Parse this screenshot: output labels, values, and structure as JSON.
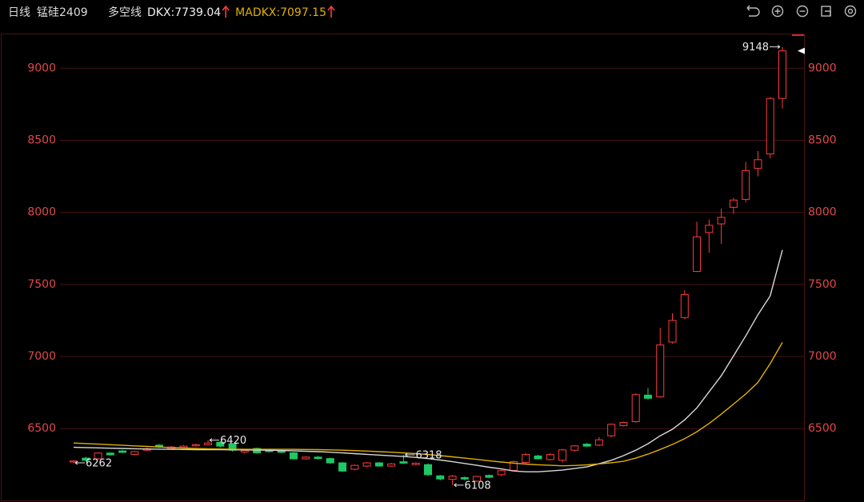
{
  "header": {
    "period": "日线",
    "symbol": "锰硅2409",
    "indicator": "多空线"
  },
  "chart_data": {
    "type": "candlestick",
    "categories": [
      null,
      null,
      null,
      null,
      null,
      null,
      null,
      null,
      null,
      null,
      null,
      null,
      null,
      null,
      null,
      null,
      null,
      null,
      null,
      null,
      null,
      null,
      null,
      null,
      null,
      null,
      null,
      null,
      null,
      null,
      null,
      null,
      null,
      null,
      null,
      null,
      null,
      null,
      null,
      null,
      null,
      null,
      null,
      null,
      null,
      null,
      null,
      null,
      null,
      null,
      null,
      null,
      null,
      null,
      null,
      null,
      null,
      null,
      null
    ],
    "open": [
      6268,
      6295,
      6290,
      6330,
      6345,
      6320,
      6350,
      6385,
      6360,
      6368,
      6380,
      6388,
      6405,
      6395,
      6338,
      6362,
      6352,
      6348,
      6332,
      6290,
      6302,
      6292,
      6262,
      6218,
      6240,
      6262,
      6240,
      6270,
      6250,
      6250,
      6172,
      6148,
      6160,
      6135,
      6175,
      6180,
      6210,
      6265,
      6310,
      6285,
      6280,
      6350,
      6392,
      6385,
      6450,
      6520,
      6548,
      6732,
      6720,
      7100,
      7270,
      7590,
      7860,
      7920,
      8035,
      8090,
      8305,
      8405,
      8790
    ],
    "high": [
      6280,
      6305,
      6335,
      6335,
      6352,
      6345,
      6368,
      6392,
      6378,
      6385,
      6395,
      6420,
      6412,
      6400,
      6355,
      6368,
      6360,
      6352,
      6338,
      6308,
      6310,
      6298,
      6268,
      6250,
      6268,
      6268,
      6262,
      6318,
      6265,
      6258,
      6178,
      6178,
      6168,
      6172,
      6182,
      6215,
      6278,
      6330,
      6318,
      6330,
      6360,
      6385,
      6400,
      6440,
      6535,
      6548,
      6745,
      6782,
      7200,
      7300,
      7460,
      7935,
      7950,
      8025,
      8100,
      8350,
      8425,
      8800,
      9148
    ],
    "low": [
      6262,
      6272,
      6285,
      6312,
      6330,
      6315,
      6345,
      6365,
      6355,
      6362,
      6375,
      6382,
      6370,
      6340,
      6330,
      6325,
      6335,
      6330,
      6285,
      6285,
      6285,
      6255,
      6200,
      6210,
      6232,
      6235,
      6235,
      6255,
      6245,
      6172,
      6140,
      6108,
      6140,
      6128,
      6155,
      6170,
      6205,
      6260,
      6285,
      6278,
      6265,
      6340,
      6372,
      6378,
      6440,
      6515,
      6540,
      6700,
      6715,
      7090,
      7260,
      7585,
      7720,
      7780,
      7990,
      8070,
      8250,
      8375,
      8720
    ],
    "close": [
      6275,
      6280,
      6330,
      6318,
      6335,
      6340,
      6360,
      6372,
      6372,
      6378,
      6388,
      6400,
      6378,
      6350,
      6348,
      6332,
      6340,
      6335,
      6290,
      6302,
      6292,
      6262,
      6205,
      6245,
      6262,
      6240,
      6255,
      6260,
      6260,
      6180,
      6150,
      6170,
      6150,
      6168,
      6162,
      6208,
      6270,
      6320,
      6290,
      6320,
      6352,
      6380,
      6378,
      6422,
      6530,
      6542,
      6735,
      6710,
      7080,
      7250,
      7430,
      7830,
      7910,
      7965,
      8085,
      8290,
      8365,
      8790,
      9120
    ],
    "up_color": "#ff3b3b",
    "down_color": "#1ec864",
    "series": [
      {
        "name": "DKX",
        "legend": "DKX:7739.04",
        "color": "#d8d8d8",
        "values": [
          6370,
          6368,
          6366,
          6364,
          6362,
          6360,
          6358,
          6357,
          6356,
          6355,
          6354,
          6354,
          6354,
          6353,
          6352,
          6351,
          6350,
          6348,
          6346,
          6343,
          6340,
          6336,
          6331,
          6326,
          6321,
          6316,
          6311,
          6306,
          6300,
          6292,
          6282,
          6270,
          6258,
          6245,
          6232,
          6220,
          6206,
          6200,
          6200,
          6206,
          6212,
          6223,
          6234,
          6256,
          6280,
          6312,
          6350,
          6395,
          6450,
          6495,
          6560,
          6644,
          6755,
          6866,
          7004,
          7143,
          7290,
          7420,
          7739.04
        ]
      },
      {
        "name": "MADKX",
        "legend": "MADKX:7097.15",
        "color": "#e0b000",
        "values": [
          6400,
          6396,
          6392,
          6388,
          6384,
          6380,
          6376,
          6372,
          6368,
          6365,
          6362,
          6360,
          6358,
          6357,
          6356,
          6356,
          6356,
          6356,
          6356,
          6355,
          6354,
          6352,
          6350,
          6347,
          6344,
          6340,
          6336,
          6331,
          6326,
          6320,
          6312,
          6304,
          6295,
          6286,
          6277,
          6268,
          6260,
          6254,
          6249,
          6245,
          6242,
          6244,
          6248,
          6255,
          6263,
          6273,
          6295,
          6323,
          6355,
          6390,
          6430,
          6478,
          6535,
          6600,
          6670,
          6740,
          6820,
          6950,
          7097.15
        ]
      }
    ],
    "ylim": [
      6035,
      9240
    ],
    "yticks": [
      6500,
      7000,
      7500,
      8000,
      8500,
      9000
    ],
    "grid": true
  }
}
